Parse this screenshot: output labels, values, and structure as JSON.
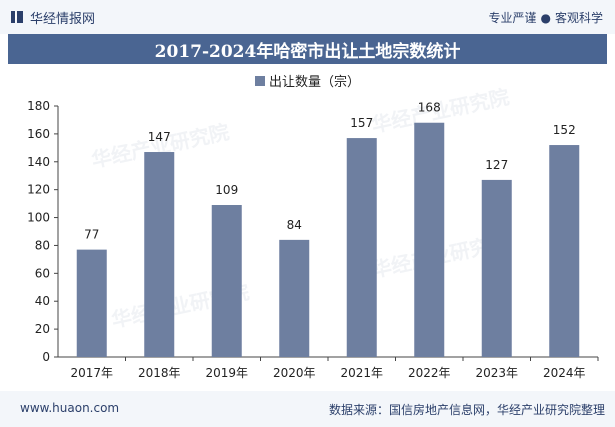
{
  "header": {
    "brand": "华经情报网",
    "tagline_left": "专业严谨",
    "tagline_right": "客观科学"
  },
  "watermark": "华经产业研究院",
  "chart_data": {
    "type": "bar",
    "title": "2017-2024年哈密市出让土地宗数统计",
    "series": [
      {
        "name": "出让数量（宗）",
        "color": "#6e7fa0",
        "values": [
          77,
          147,
          109,
          84,
          157,
          168,
          127,
          152
        ]
      }
    ],
    "categories": [
      "2017年",
      "2018年",
      "2019年",
      "2020年",
      "2021年",
      "2022年",
      "2023年",
      "2024年"
    ],
    "ylim": [
      0,
      180
    ],
    "yticks": [
      0,
      20,
      40,
      60,
      80,
      100,
      120,
      140,
      160,
      180
    ],
    "xlabel": "",
    "ylabel": "",
    "legend_position": "top-center"
  },
  "footer": {
    "url": "www.huaon.com",
    "source": "数据来源：国信房地产信息网，华经产业研究院整理"
  }
}
